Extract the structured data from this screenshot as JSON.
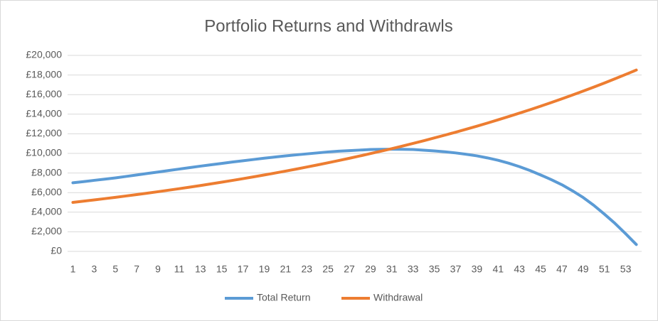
{
  "chart_data": {
    "type": "line",
    "title": "Portfolio Returns and Withdrawls",
    "categories": [
      1,
      null,
      3,
      null,
      5,
      null,
      7,
      null,
      9,
      null,
      11,
      null,
      13,
      null,
      15,
      null,
      17,
      null,
      19,
      null,
      21,
      null,
      23,
      null,
      25,
      null,
      27,
      null,
      29,
      null,
      31,
      null,
      33,
      null,
      35,
      null,
      37,
      null,
      39,
      null,
      41,
      null,
      43,
      null,
      45,
      null,
      47,
      null,
      49,
      null,
      51,
      null,
      53,
      null
    ],
    "series": [
      {
        "name": "Total Return",
        "color": "#5b9bd5",
        "values": [
          7000,
          7120,
          7250,
          7370,
          7500,
          7650,
          7800,
          7950,
          8100,
          8250,
          8400,
          8550,
          8700,
          8840,
          8980,
          9120,
          9250,
          9380,
          9510,
          9630,
          9750,
          9850,
          9950,
          10050,
          10150,
          10230,
          10280,
          10340,
          10400,
          10420,
          10430,
          10420,
          10400,
          10330,
          10250,
          10160,
          10050,
          9910,
          9750,
          9540,
          9300,
          9000,
          8650,
          8250,
          7800,
          7320,
          6800,
          6180,
          5500,
          4700,
          3800,
          2850,
          1800,
          700
        ]
      },
      {
        "name": "Withdrawal",
        "color": "#ed7d31",
        "values": [
          5000,
          5125,
          5253,
          5384,
          5519,
          5657,
          5798,
          5943,
          6092,
          6244,
          6400,
          6560,
          6724,
          6893,
          7065,
          7242,
          7423,
          7608,
          7798,
          7993,
          8193,
          8398,
          8608,
          8823,
          9044,
          9270,
          9502,
          9739,
          9983,
          10232,
          10488,
          10750,
          11019,
          11294,
          11577,
          11866,
          12163,
          12467,
          12779,
          13098,
          13426,
          13762,
          14106,
          14458,
          14820,
          15190,
          15570,
          15959,
          16358,
          16767,
          17186,
          17616,
          18056,
          18508
        ]
      }
    ],
    "ylim": [
      0,
      20000
    ],
    "yticks": [
      {
        "value": 0,
        "label": "£0"
      },
      {
        "value": 2000,
        "label": "£2,000"
      },
      {
        "value": 4000,
        "label": "£4,000"
      },
      {
        "value": 6000,
        "label": "£6,000"
      },
      {
        "value": 8000,
        "label": "£8,000"
      },
      {
        "value": 10000,
        "label": "£10,000"
      },
      {
        "value": 12000,
        "label": "£12,000"
      },
      {
        "value": 14000,
        "label": "£14,000"
      },
      {
        "value": 16000,
        "label": "£16,000"
      },
      {
        "value": 18000,
        "label": "£18,000"
      },
      {
        "value": 20000,
        "label": "£20,000"
      }
    ],
    "grid": true,
    "legend": "bottom"
  }
}
